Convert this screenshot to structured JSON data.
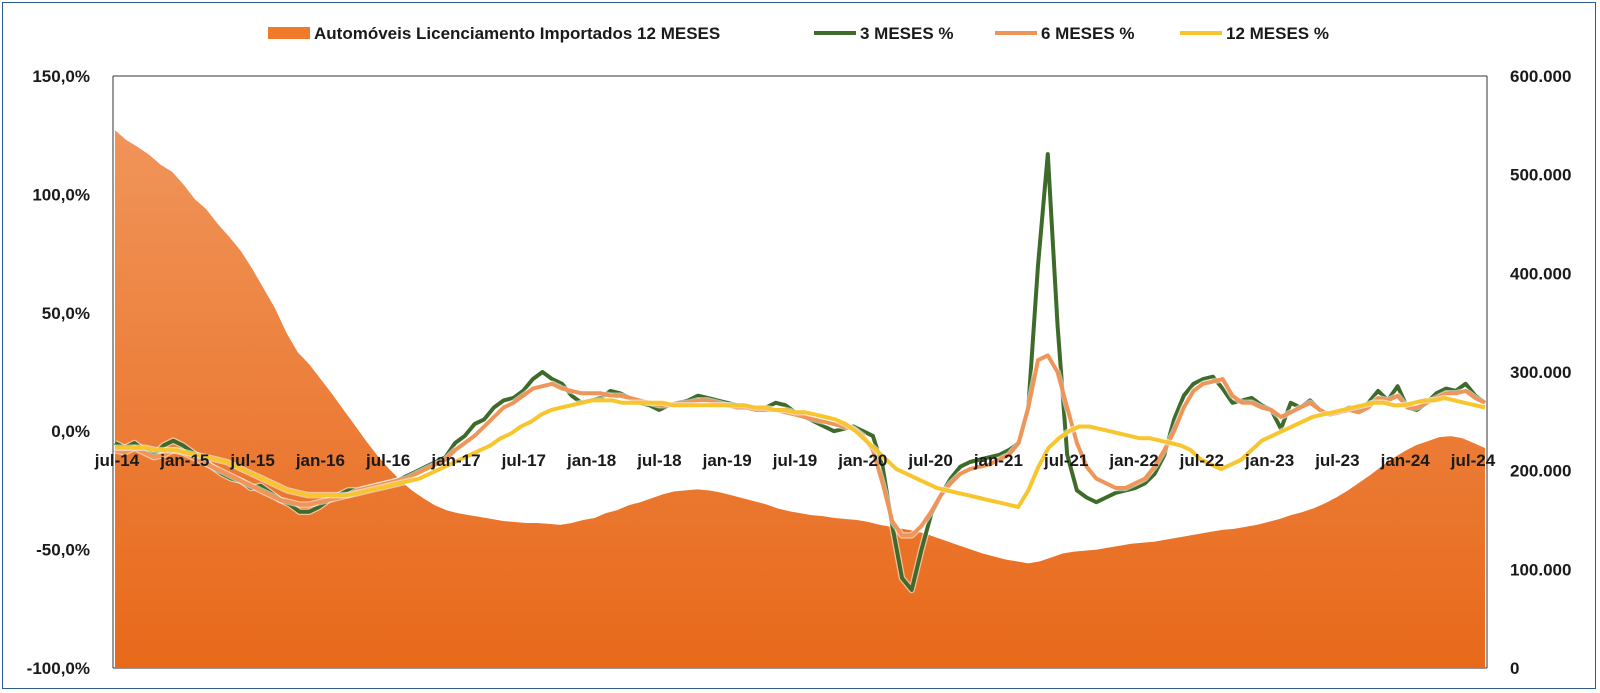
{
  "chart_data": {
    "type": "line",
    "legend_position": "top",
    "grid": false,
    "legend": [
      {
        "label": "Automóveis Licenciamento Importados 12 MESES",
        "kind": "area",
        "color": "#ee7a2a"
      },
      {
        "label": "3 MESES %",
        "kind": "line",
        "color": "#3e6b2a"
      },
      {
        "label": "6 MESES %",
        "kind": "line",
        "color": "#f0955a"
      },
      {
        "label": "12 MESES %",
        "kind": "line",
        "color": "#f7c62f"
      }
    ],
    "y_left": {
      "ylim": [
        -100,
        150
      ],
      "ticks": [
        150,
        100,
        50,
        0,
        -50,
        -100
      ],
      "tick_labels": [
        "150,0%",
        "100,0%",
        "50,0%",
        "0,0%",
        "-50,0%",
        "-100,0%"
      ]
    },
    "y_right": {
      "ylim": [
        0,
        600000
      ],
      "ticks": [
        600000,
        500000,
        400000,
        300000,
        200000,
        100000,
        0
      ],
      "tick_labels": [
        "600.000",
        "500.000",
        "400.000",
        "300.000",
        "200.000",
        "100.000",
        "0"
      ]
    },
    "x_tick_labels": [
      "jul-14",
      "jan-15",
      "jul-15",
      "jan-16",
      "jul-16",
      "jan-17",
      "jul-17",
      "jan-18",
      "jul-18",
      "jan-19",
      "jul-19",
      "jan-20",
      "jul-20",
      "jan-21",
      "jul-21",
      "jan-22",
      "jul-22",
      "jan-23",
      "jul-23",
      "jan-24",
      "jul-24"
    ],
    "series": [
      {
        "name": "Automóveis Licenciamento Importados 12 MESES",
        "axis": "right",
        "values": [
          545000,
          535000,
          528000,
          520000,
          510000,
          503000,
          490000,
          475000,
          465000,
          450000,
          437000,
          423000,
          405000,
          385000,
          365000,
          340000,
          320000,
          308000,
          293000,
          278000,
          262000,
          246000,
          230000,
          215000,
          202000,
          190000,
          180000,
          172000,
          165000,
          160000,
          157000,
          155000,
          153000,
          151000,
          149000,
          148000,
          147000,
          147000,
          146000,
          145000,
          147000,
          150000,
          152000,
          157000,
          160000,
          165000,
          168000,
          172000,
          176000,
          179000,
          180000,
          181000,
          180000,
          178000,
          175000,
          172000,
          169000,
          166000,
          162000,
          159000,
          157000,
          155000,
          154000,
          152000,
          151000,
          150000,
          148000,
          145000,
          143000,
          141000,
          139000,
          136000,
          132000,
          128000,
          124000,
          120000,
          116000,
          113000,
          110000,
          108000,
          106000,
          108000,
          112000,
          116000,
          118000,
          119000,
          120000,
          122000,
          124000,
          126000,
          127000,
          128000,
          130000,
          132000,
          134000,
          136000,
          138000,
          140000,
          141000,
          143000,
          145000,
          148000,
          151000,
          155000,
          158000,
          162000,
          167000,
          173000,
          180000,
          188000,
          196000,
          205000,
          213000,
          220000,
          226000,
          230000,
          234000,
          235000,
          233000,
          228000,
          223000
        ]
      },
      {
        "name": "3 MESES %",
        "axis": "left",
        "values": [
          -5,
          -7,
          -5,
          -8,
          -10,
          -6,
          -4,
          -6,
          -9,
          -12,
          -15,
          -18,
          -20,
          -21,
          -24,
          -23,
          -26,
          -29,
          -31,
          -34,
          -34,
          -32,
          -29,
          -27,
          -25,
          -25,
          -24,
          -23,
          -22,
          -21,
          -19,
          -17,
          -15,
          -13,
          -11,
          -5,
          -2,
          3,
          5,
          10,
          13,
          14,
          17,
          22,
          25,
          22,
          20,
          15,
          12,
          13,
          14,
          17,
          16,
          14,
          12,
          11,
          9,
          11,
          12,
          13,
          15,
          14,
          13,
          12,
          11,
          10,
          9,
          10,
          12,
          11,
          8,
          6,
          4,
          2,
          0,
          1,
          2,
          0,
          -2,
          -15,
          -40,
          -62,
          -67,
          -50,
          -35,
          -27,
          -20,
          -15,
          -13,
          -12,
          -11,
          -10,
          -8,
          -5,
          10,
          70,
          117,
          45,
          -10,
          -25,
          -28,
          -30,
          -28,
          -26,
          -25,
          -24,
          -22,
          -18,
          -10,
          5,
          15,
          20,
          22,
          23,
          18,
          12,
          13,
          14,
          11,
          9,
          1,
          12,
          10,
          13,
          9,
          7,
          8,
          10,
          9,
          12,
          17,
          13,
          19,
          10,
          9,
          12,
          16,
          18,
          17,
          20,
          15,
          12
        ]
      },
      {
        "name": "6 MESES %",
        "axis": "left",
        "values": [
          -8,
          -9,
          -7,
          -9,
          -11,
          -10,
          -8,
          -9,
          -11,
          -13,
          -15,
          -17,
          -19,
          -21,
          -23,
          -25,
          -27,
          -29,
          -30,
          -31,
          -31,
          -30,
          -29,
          -28,
          -27,
          -25,
          -24,
          -23,
          -22,
          -21,
          -20,
          -18,
          -16,
          -14,
          -12,
          -8,
          -5,
          -2,
          2,
          6,
          10,
          12,
          15,
          18,
          19,
          20,
          18,
          17,
          16,
          16,
          16,
          15,
          15,
          14,
          13,
          12,
          11,
          11,
          12,
          12,
          13,
          13,
          12,
          11,
          10,
          10,
          9,
          9,
          9,
          8,
          7,
          6,
          5,
          4,
          3,
          2,
          1,
          -2,
          -8,
          -22,
          -38,
          -44,
          -44,
          -40,
          -34,
          -27,
          -22,
          -18,
          -16,
          -15,
          -14,
          -12,
          -10,
          -5,
          10,
          30,
          32,
          25,
          10,
          -5,
          -15,
          -20,
          -22,
          -24,
          -24,
          -22,
          -20,
          -15,
          -8,
          0,
          10,
          17,
          20,
          21,
          22,
          15,
          12,
          12,
          10,
          9,
          6,
          8,
          10,
          12,
          9,
          7,
          8,
          9,
          8,
          10,
          14,
          13,
          15,
          10,
          10,
          12,
          14,
          16,
          16,
          17,
          14,
          12
        ]
      },
      {
        "name": "12 MESES %",
        "axis": "left",
        "values": [
          -7,
          -7,
          -7,
          -7,
          -8,
          -8,
          -8,
          -9,
          -10,
          -11,
          -12,
          -13,
          -15,
          -17,
          -19,
          -21,
          -23,
          -25,
          -26,
          -27,
          -27,
          -27,
          -27,
          -27,
          -26,
          -25,
          -24,
          -23,
          -22,
          -21,
          -20,
          -18,
          -16,
          -14,
          -12,
          -10,
          -8,
          -6,
          -3,
          -1,
          2,
          4,
          7,
          9,
          10,
          11,
          12,
          13,
          13,
          13,
          12,
          12,
          12,
          12,
          12,
          11,
          11,
          11,
          11,
          11,
          11,
          11,
          11,
          10,
          10,
          9,
          9,
          8,
          8,
          7,
          6,
          5,
          3,
          0,
          -4,
          -8,
          -12,
          -16,
          -18,
          -20,
          -22,
          -24,
          -25,
          -26,
          -27,
          -28,
          -29,
          -30,
          -31,
          -32,
          -25,
          -15,
          -7,
          -3,
          0,
          2,
          2,
          1,
          0,
          -1,
          -2,
          -3,
          -3,
          -4,
          -5,
          -6,
          -8,
          -12,
          -14,
          -16,
          -14,
          -12,
          -8,
          -4,
          -2,
          0,
          2,
          4,
          6,
          7,
          8,
          9,
          10,
          11,
          12,
          12,
          11,
          11,
          12,
          13,
          13,
          14,
          13,
          12,
          11,
          10
        ]
      }
    ]
  }
}
